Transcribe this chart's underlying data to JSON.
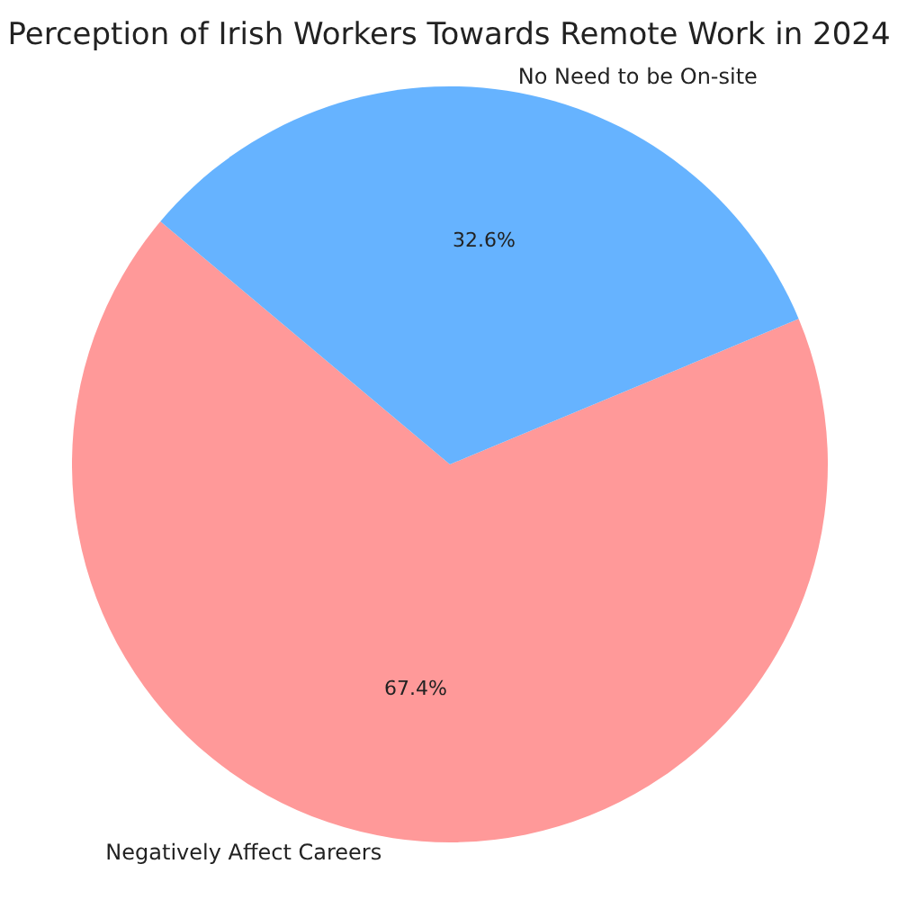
{
  "chart_data": {
    "type": "pie",
    "title": "Perception of Irish Workers Towards Remote Work in 2024",
    "categories": [
      "Negatively Affect Careers",
      "No Need to be On-site"
    ],
    "values": [
      67.4,
      32.6
    ],
    "colors": [
      "#ff9999",
      "#66b3ff"
    ],
    "value_labels": [
      "67.4%",
      "32.6%"
    ]
  }
}
